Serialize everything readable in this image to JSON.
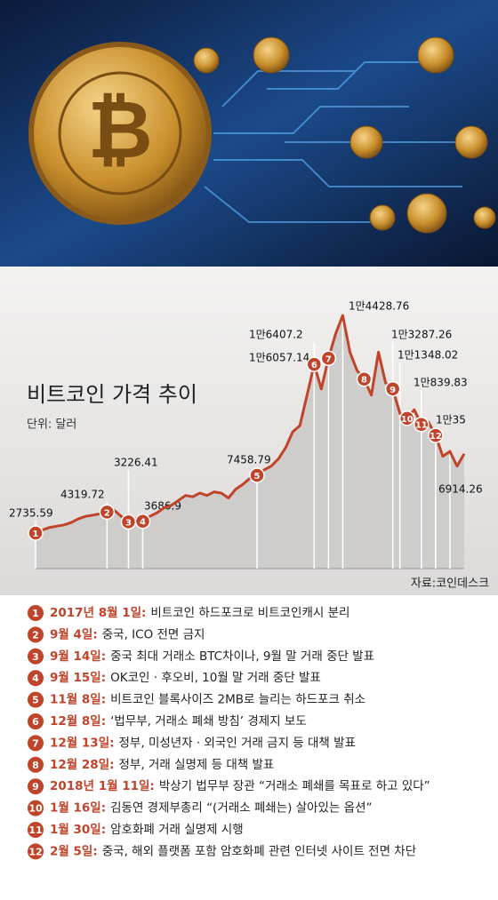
{
  "chart_data": {
    "type": "line",
    "title": "비트코인 가격 추이",
    "unit": "단위: 달러",
    "source": "자료:코인데스크",
    "logo_text": "bitcoin",
    "color": "#c0442a",
    "values": [
      2736,
      3000,
      3200,
      3300,
      3400,
      3600,
      3900,
      4100,
      4200,
      4300,
      4450,
      4600,
      4100,
      3650,
      3900,
      3700,
      4100,
      4400,
      4800,
      5000,
      5400,
      5800,
      5700,
      6000,
      5800,
      6100,
      6000,
      5600,
      6300,
      6700,
      7200,
      7450,
      7900,
      8200,
      8800,
      9700,
      11000,
      11500,
      14000,
      16500,
      14500,
      17000,
      19000,
      20500,
      17500,
      16000,
      15300,
      14000,
      17500,
      15000,
      14500,
      12500,
      12100,
      12800,
      11600,
      11800,
      10700,
      9000,
      9400,
      8200,
      9200
    ],
    "annotations": [
      2735.59,
      4319.72,
      3226.41,
      3686.9,
      7458.79,
      {
        "value": 16407.2,
        "label": "1만6407.2"
      },
      {
        "value": 16057.14,
        "label": "1만6057.14"
      },
      {
        "value": 14428.76,
        "label": "1만4428.76"
      },
      {
        "value": 13287.26,
        "label": "1만3287.26"
      },
      {
        "value": 11348.02,
        "label": "1만1348.02"
      },
      {
        "value": 10839.83,
        "label": "1만839.83"
      },
      {
        "value": 10035,
        "label": "1만35"
      },
      6914.26
    ]
  },
  "events": [
    {
      "num": 1,
      "date": "2017년 8월 1일:",
      "text": "비트코인 하드포크로 비트코인캐시 분리"
    },
    {
      "num": 2,
      "date": "9월 4일:",
      "text": "중국, ICO 전면 금지"
    },
    {
      "num": 3,
      "date": "9월 14일:",
      "text": "중국 최대 거래소 BTC차이나, 9월 말 거래 중단 발표"
    },
    {
      "num": 4,
      "date": "9월 15일:",
      "text": "OK코인 · 후오비, 10월 말 거래 중단 발표"
    },
    {
      "num": 5,
      "date": "11월 8일:",
      "text": "비트코인 블록사이즈 2MB로 늘리는 하드포크 취소"
    },
    {
      "num": 6,
      "date": "12월 8일:",
      "text": "‘법무부, 거래소 폐쇄 방침’ 경제지 보도"
    },
    {
      "num": 7,
      "date": "12월 13일:",
      "text": "정부, 미성년자 · 외국인 거래 금지 등 대책 발표"
    },
    {
      "num": 8,
      "date": "12월 28일:",
      "text": "정부, 거래 실명제 등 대책 발표"
    },
    {
      "num": 9,
      "date": "2018년 1월 11일:",
      "text": "박상기 법무부 장관 “거래소 폐쇄를 목표로 하고 있다”"
    },
    {
      "num": 10,
      "date": "1월 16일:",
      "text": "김동연 경제부총리 “(거래소 폐쇄는) 살아있는 옵션”"
    },
    {
      "num": 11,
      "date": "1월 30일:",
      "text": "암호화폐 거래 실명제 시행"
    },
    {
      "num": 12,
      "date": "2월 5일:",
      "text": "중국, 해외 플랫폼 포함 암호화폐 관련 인터넷 사이트 전면 차단"
    }
  ]
}
